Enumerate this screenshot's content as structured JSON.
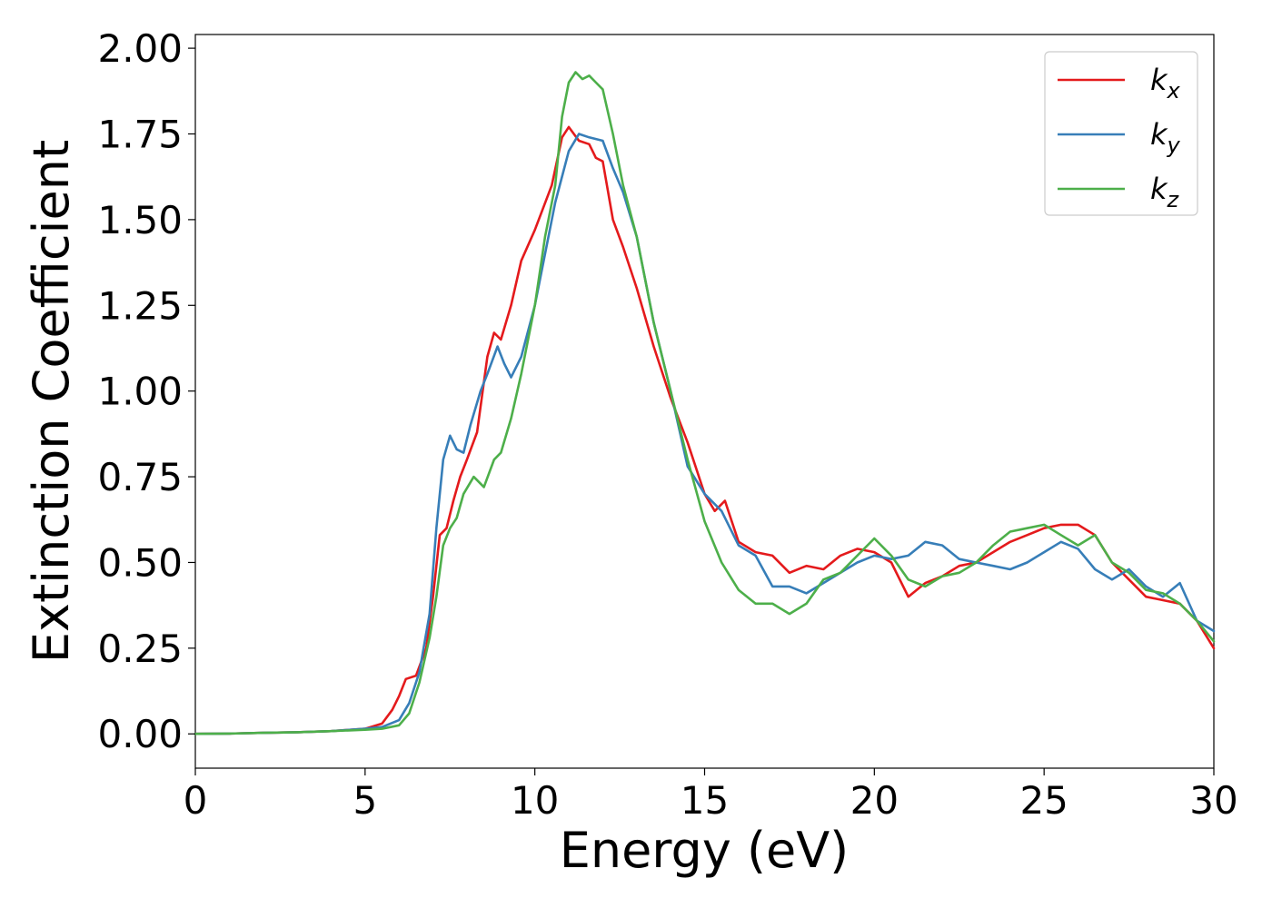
{
  "chart_data": {
    "type": "line",
    "xlabel": "Energy (eV)",
    "ylabel": "Extinction Coefficient",
    "xlim": [
      0,
      30
    ],
    "ylim": [
      -0.1,
      2.04
    ],
    "x_ticks": [
      "0",
      "5",
      "10",
      "15",
      "20",
      "25",
      "30"
    ],
    "y_ticks": [
      "0.00",
      "0.25",
      "0.50",
      "0.75",
      "1.00",
      "1.25",
      "1.50",
      "1.75",
      "2.00"
    ],
    "grid": false,
    "legend_position": "top-right",
    "series": [
      {
        "name": "k_x",
        "label_base": "k",
        "label_sub": "x",
        "color": "#e41a1c",
        "x": [
          0,
          1,
          2,
          3,
          4,
          5,
          5.5,
          5.8,
          6.0,
          6.2,
          6.5,
          6.8,
          7.0,
          7.2,
          7.4,
          7.6,
          7.8,
          8.0,
          8.3,
          8.6,
          8.8,
          9.0,
          9.3,
          9.6,
          10.0,
          10.5,
          10.8,
          11.0,
          11.3,
          11.6,
          11.8,
          12.0,
          12.3,
          12.6,
          13.0,
          13.5,
          14.0,
          14.5,
          15.0,
          15.3,
          15.6,
          16.0,
          16.5,
          17.0,
          17.5,
          18.0,
          18.5,
          19.0,
          19.5,
          20.0,
          20.5,
          21.0,
          21.5,
          22.0,
          22.5,
          23.0,
          23.5,
          24.0,
          24.5,
          25.0,
          25.5,
          26.0,
          26.5,
          27.0,
          27.5,
          28.0,
          28.5,
          29.0,
          29.5,
          30.0
        ],
        "y": [
          0,
          0.001,
          0.003,
          0.005,
          0.008,
          0.015,
          0.03,
          0.07,
          0.11,
          0.16,
          0.17,
          0.25,
          0.4,
          0.58,
          0.6,
          0.68,
          0.75,
          0.8,
          0.88,
          1.1,
          1.17,
          1.15,
          1.25,
          1.38,
          1.47,
          1.6,
          1.74,
          1.77,
          1.73,
          1.72,
          1.68,
          1.67,
          1.5,
          1.42,
          1.3,
          1.13,
          0.98,
          0.85,
          0.7,
          0.65,
          0.68,
          0.56,
          0.53,
          0.52,
          0.47,
          0.49,
          0.48,
          0.52,
          0.54,
          0.53,
          0.5,
          0.4,
          0.44,
          0.46,
          0.49,
          0.5,
          0.53,
          0.56,
          0.58,
          0.6,
          0.61,
          0.61,
          0.58,
          0.5,
          0.45,
          0.4,
          0.39,
          0.38,
          0.33,
          0.25
        ]
      },
      {
        "name": "k_y",
        "label_base": "k",
        "label_sub": "y",
        "color": "#377eb8",
        "x": [
          0,
          1,
          2,
          3,
          4,
          5,
          5.5,
          6.0,
          6.3,
          6.6,
          6.9,
          7.1,
          7.3,
          7.5,
          7.7,
          7.9,
          8.1,
          8.4,
          8.6,
          8.9,
          9.1,
          9.3,
          9.6,
          10.0,
          10.3,
          10.6,
          11.0,
          11.3,
          11.6,
          12.0,
          12.3,
          12.6,
          13.0,
          13.5,
          14.0,
          14.5,
          15.0,
          15.5,
          16.0,
          16.5,
          17.0,
          17.5,
          18.0,
          18.5,
          19.0,
          19.5,
          20.0,
          20.5,
          21.0,
          21.5,
          22.0,
          22.5,
          23.0,
          23.5,
          24.0,
          24.5,
          25.0,
          25.5,
          26.0,
          26.5,
          27.0,
          27.5,
          28.0,
          28.5,
          29.0,
          29.5,
          30.0
        ],
        "y": [
          0,
          0.001,
          0.003,
          0.005,
          0.008,
          0.015,
          0.02,
          0.04,
          0.09,
          0.18,
          0.35,
          0.6,
          0.8,
          0.87,
          0.83,
          0.82,
          0.9,
          1.0,
          1.05,
          1.13,
          1.08,
          1.04,
          1.1,
          1.25,
          1.4,
          1.55,
          1.7,
          1.75,
          1.74,
          1.73,
          1.65,
          1.58,
          1.45,
          1.2,
          1.0,
          0.78,
          0.7,
          0.65,
          0.55,
          0.52,
          0.43,
          0.43,
          0.41,
          0.44,
          0.47,
          0.5,
          0.52,
          0.51,
          0.52,
          0.56,
          0.55,
          0.51,
          0.5,
          0.49,
          0.48,
          0.5,
          0.53,
          0.56,
          0.54,
          0.48,
          0.45,
          0.48,
          0.43,
          0.4,
          0.44,
          0.33,
          0.3
        ]
      },
      {
        "name": "k_z",
        "label_base": "k",
        "label_sub": "z",
        "color": "#4daf4a",
        "x": [
          0,
          1,
          2,
          3,
          4,
          5,
          5.5,
          6.0,
          6.3,
          6.6,
          6.9,
          7.1,
          7.3,
          7.5,
          7.7,
          7.9,
          8.2,
          8.5,
          8.8,
          9.0,
          9.3,
          9.6,
          10.0,
          10.3,
          10.6,
          10.8,
          11.0,
          11.2,
          11.4,
          11.6,
          11.8,
          12.0,
          12.3,
          12.6,
          13.0,
          13.5,
          14.0,
          14.5,
          15.0,
          15.5,
          16.0,
          16.5,
          17.0,
          17.5,
          18.0,
          18.5,
          19.0,
          19.5,
          20.0,
          20.5,
          21.0,
          21.5,
          22.0,
          22.5,
          23.0,
          23.5,
          24.0,
          24.5,
          25.0,
          25.5,
          26.0,
          26.5,
          27.0,
          27.5,
          28.0,
          28.5,
          29.0,
          29.5,
          30.0
        ],
        "y": [
          0,
          0.001,
          0.003,
          0.005,
          0.008,
          0.012,
          0.015,
          0.025,
          0.06,
          0.15,
          0.28,
          0.4,
          0.55,
          0.6,
          0.63,
          0.7,
          0.75,
          0.72,
          0.8,
          0.82,
          0.92,
          1.05,
          1.25,
          1.45,
          1.6,
          1.8,
          1.9,
          1.93,
          1.91,
          1.92,
          1.9,
          1.88,
          1.75,
          1.6,
          1.45,
          1.2,
          1.0,
          0.8,
          0.62,
          0.5,
          0.42,
          0.38,
          0.38,
          0.35,
          0.38,
          0.45,
          0.47,
          0.52,
          0.57,
          0.52,
          0.45,
          0.43,
          0.46,
          0.47,
          0.5,
          0.55,
          0.59,
          0.6,
          0.61,
          0.58,
          0.55,
          0.58,
          0.5,
          0.47,
          0.42,
          0.41,
          0.38,
          0.33,
          0.27
        ]
      }
    ]
  }
}
